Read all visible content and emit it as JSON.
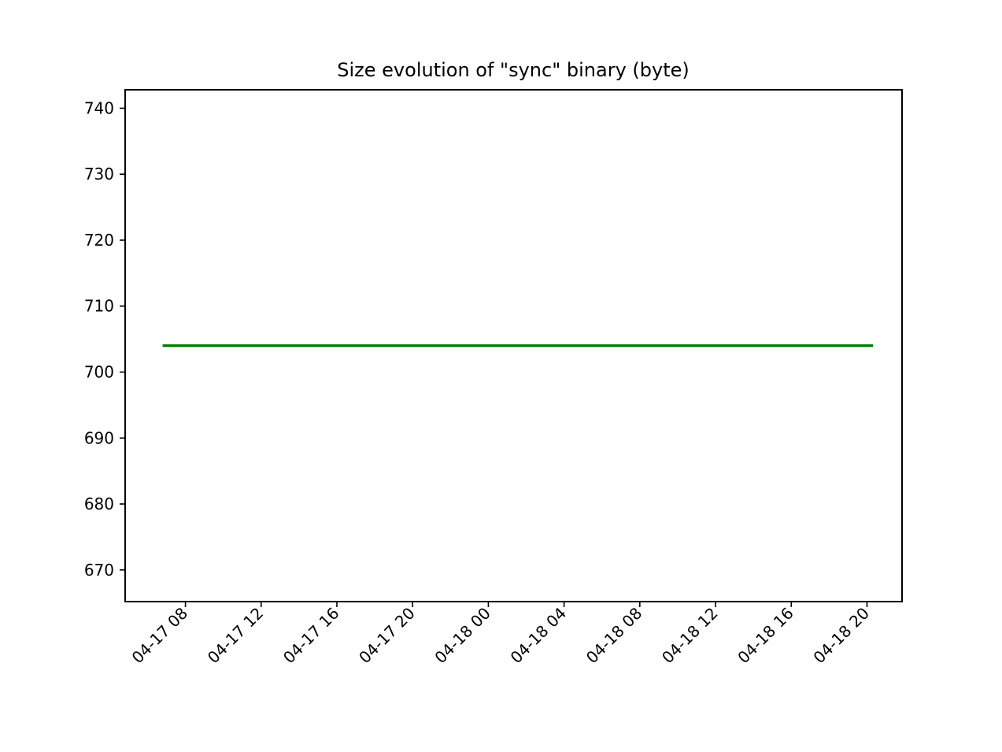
{
  "chart_data": {
    "type": "line",
    "title": "Size evolution of \"sync\" binary (byte)",
    "xlabel": "",
    "ylabel": "",
    "x_type": "datetime",
    "x_range": [
      "04-17 04:49",
      "04-18 21:51"
    ],
    "x_ticks": [
      "04-17 08",
      "04-17 12",
      "04-17 16",
      "04-17 20",
      "04-18 00",
      "04-18 04",
      "04-18 08",
      "04-18 12",
      "04-18 16",
      "04-18 20"
    ],
    "ylim": [
      665.2,
      742.8
    ],
    "y_ticks": [
      "670",
      "680",
      "690",
      "700",
      "710",
      "720",
      "730",
      "740"
    ],
    "grid": false,
    "series": [
      {
        "color": "#008000",
        "x": [
          "04-17 06:52",
          "04-18 20:15"
        ],
        "y": [
          704,
          704
        ]
      }
    ]
  }
}
